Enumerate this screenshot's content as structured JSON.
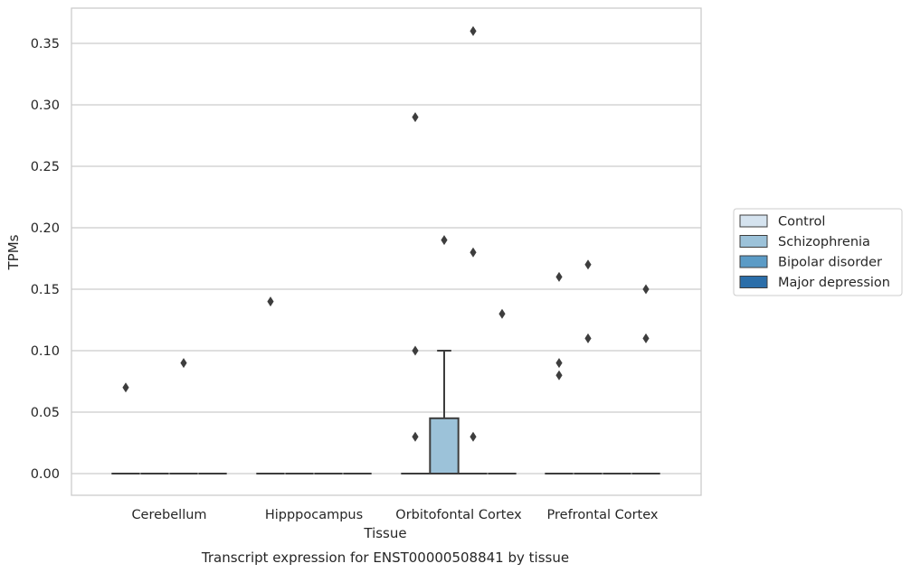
{
  "chart_data": {
    "type": "box",
    "xlabel": "Tissue",
    "ylabel": "TPMs",
    "caption": "Transcript expression for ENST00000508841 by tissue",
    "categories": [
      "Cerebellum",
      "Hipppocampus",
      "Orbitofontal Cortex",
      "Prefrontal Cortex"
    ],
    "ylim": [
      -0.018,
      0.378
    ],
    "yticks": [
      "0.00",
      "0.05",
      "0.10",
      "0.15",
      "0.20",
      "0.25",
      "0.30",
      "0.35"
    ],
    "grid": "horizontal",
    "legend_position": "right",
    "series": [
      {
        "name": "Control",
        "color": "#d5e3ef",
        "boxes": [
          {
            "q1": 0,
            "median": 0,
            "q3": 0,
            "whisker_low": 0,
            "whisker_high": 0,
            "outliers": [
              0.07
            ]
          },
          {
            "q1": 0,
            "median": 0,
            "q3": 0,
            "whisker_low": 0,
            "whisker_high": 0,
            "outliers": [
              0.14
            ]
          },
          {
            "q1": 0,
            "median": 0,
            "q3": 0,
            "whisker_low": 0,
            "whisker_high": 0,
            "outliers": [
              0.29,
              0.1,
              0.03
            ]
          },
          {
            "q1": 0,
            "median": 0,
            "q3": 0,
            "whisker_low": 0,
            "whisker_high": 0,
            "outliers": [
              0.16,
              0.09,
              0.08
            ]
          }
        ]
      },
      {
        "name": "Schizophrenia",
        "color": "#9cc2d9",
        "boxes": [
          {
            "q1": 0,
            "median": 0,
            "q3": 0,
            "whisker_low": 0,
            "whisker_high": 0,
            "outliers": []
          },
          {
            "q1": 0,
            "median": 0,
            "q3": 0,
            "whisker_low": 0,
            "whisker_high": 0,
            "outliers": []
          },
          {
            "q1": 0,
            "median": 0,
            "q3": 0.045,
            "whisker_low": 0,
            "whisker_high": 0.1,
            "outliers": [
              0.19
            ]
          },
          {
            "q1": 0,
            "median": 0,
            "q3": 0,
            "whisker_low": 0,
            "whisker_high": 0,
            "outliers": [
              0.17,
              0.11
            ]
          }
        ]
      },
      {
        "name": "Bipolar disorder",
        "color": "#5b9bc6",
        "boxes": [
          {
            "q1": 0,
            "median": 0,
            "q3": 0,
            "whisker_low": 0,
            "whisker_high": 0,
            "outliers": [
              0.09
            ]
          },
          {
            "q1": 0,
            "median": 0,
            "q3": 0,
            "whisker_low": 0,
            "whisker_high": 0,
            "outliers": []
          },
          {
            "q1": 0,
            "median": 0,
            "q3": 0,
            "whisker_low": 0,
            "whisker_high": 0,
            "outliers": [
              0.36,
              0.18,
              0.03
            ]
          },
          {
            "q1": 0,
            "median": 0,
            "q3": 0,
            "whisker_low": 0,
            "whisker_high": 0,
            "outliers": []
          }
        ]
      },
      {
        "name": "Major depression",
        "color": "#2b6ea9",
        "boxes": [
          {
            "q1": 0,
            "median": 0,
            "q3": 0,
            "whisker_low": 0,
            "whisker_high": 0,
            "outliers": []
          },
          {
            "q1": 0,
            "median": 0,
            "q3": 0,
            "whisker_low": 0,
            "whisker_high": 0,
            "outliers": []
          },
          {
            "q1": 0,
            "median": 0,
            "q3": 0,
            "whisker_low": 0,
            "whisker_high": 0,
            "outliers": [
              0.13
            ]
          },
          {
            "q1": 0,
            "median": 0,
            "q3": 0,
            "whisker_low": 0,
            "whisker_high": 0,
            "outliers": [
              0.15,
              0.11
            ]
          }
        ]
      }
    ]
  }
}
